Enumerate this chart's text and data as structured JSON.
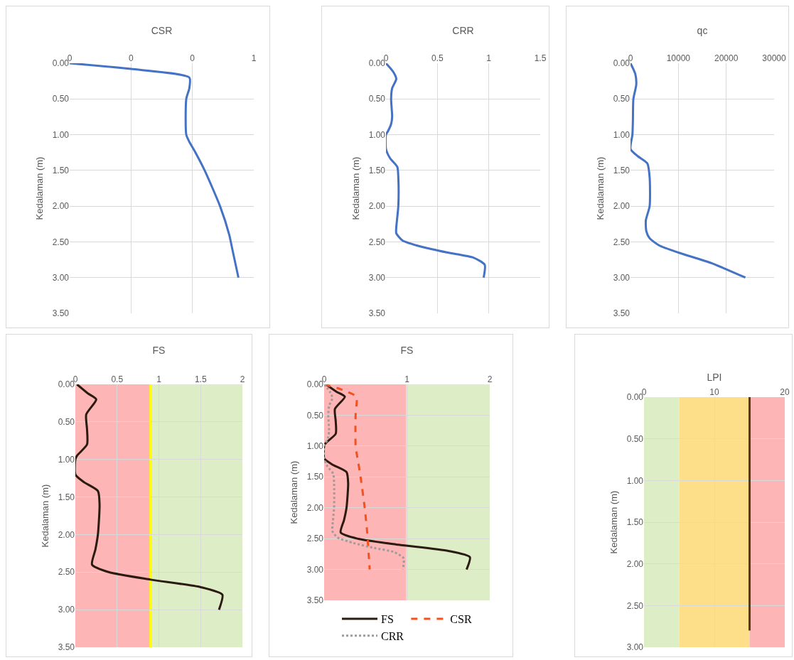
{
  "chart_data": [
    {
      "type": "line",
      "title": "CSR",
      "ylabel": "Kedalaman (m)",
      "xlim": [
        0,
        0.6
      ],
      "xticks": [
        {
          "value": 0,
          "label": "0"
        },
        {
          "value": 0.2,
          "label": "0"
        },
        {
          "value": 0.4,
          "label": "0"
        },
        {
          "value": 0.6,
          "label": "1"
        }
      ],
      "ylim": [
        3.5,
        0
      ],
      "yticks": [
        {
          "value": 0,
          "label": "0.00"
        },
        {
          "value": 0.5,
          "label": "0.50"
        },
        {
          "value": 1,
          "label": "1.00"
        },
        {
          "value": 1.5,
          "label": "1.50"
        },
        {
          "value": 2,
          "label": "2.00"
        },
        {
          "value": 2.5,
          "label": "2.50"
        },
        {
          "value": 3,
          "label": "3.00"
        },
        {
          "value": 3.5,
          "label": "3.50"
        }
      ],
      "grid": true,
      "legend": false,
      "series": [
        {
          "color": "#4472c4",
          "line_style": "solid",
          "x": [
            0,
            0.2,
            0.39,
            0.39,
            0.38,
            0.38,
            0.39,
            0.41,
            0.44,
            0.49,
            0.52,
            0.53,
            0.55
          ],
          "values": [
            0,
            0.08,
            0.2,
            0.35,
            0.5,
            1.0,
            1.1,
            1.25,
            1.5,
            2.0,
            2.4,
            2.6,
            3.0
          ]
        }
      ]
    },
    {
      "type": "line",
      "title": "CRR",
      "ylabel": "Kedalaman (m)",
      "xlim": [
        0,
        1.5
      ],
      "xticks": [
        0,
        0.5,
        1,
        1.5
      ],
      "ylim": [
        3.5,
        0
      ],
      "yticks": [
        {
          "value": 0,
          "label": "0.00"
        },
        {
          "value": 0.5,
          "label": "0.50"
        },
        {
          "value": 1,
          "label": "1.00"
        },
        {
          "value": 1.5,
          "label": "1.50"
        },
        {
          "value": 2,
          "label": "2.00"
        },
        {
          "value": 2.5,
          "label": "2.50"
        },
        {
          "value": 3,
          "label": "3.00"
        },
        {
          "value": 3.5,
          "label": "3.50"
        }
      ],
      "grid": true,
      "legend": false,
      "series": [
        {
          "color": "#4472c4",
          "line_style": "solid",
          "x": [
            0,
            0.07,
            0.1,
            0.06,
            0.05,
            0.06,
            0.05,
            0.02,
            0,
            0,
            0.04,
            0.11,
            0.12,
            0.12,
            0.1,
            0.1,
            0.16,
            0.35,
            0.6,
            0.85,
            0.96,
            0.95
          ],
          "values": [
            0,
            0.12,
            0.22,
            0.35,
            0.5,
            0.75,
            0.85,
            0.95,
            1.0,
            1.2,
            1.33,
            1.45,
            1.6,
            2.0,
            2.3,
            2.38,
            2.48,
            2.57,
            2.65,
            2.72,
            2.82,
            3.0
          ]
        }
      ]
    },
    {
      "type": "line",
      "title": "qc",
      "ylabel": "Kedalaman (m)",
      "xlim": [
        0,
        30000
      ],
      "xticks": [
        0,
        10000,
        20000,
        30000
      ],
      "ylim": [
        3.5,
        0
      ],
      "yticks": [
        {
          "value": 0,
          "label": "0.00"
        },
        {
          "value": 0.5,
          "label": "0.50"
        },
        {
          "value": 1,
          "label": "1.00"
        },
        {
          "value": 1.5,
          "label": "1.50"
        },
        {
          "value": 2,
          "label": "2.00"
        },
        {
          "value": 2.5,
          "label": "2.50"
        },
        {
          "value": 3,
          "label": "3.00"
        },
        {
          "value": 3.5,
          "label": "3.50"
        }
      ],
      "grid": true,
      "legend": false,
      "series": [
        {
          "color": "#4472c4",
          "line_style": "solid",
          "x": [
            0,
            1000,
            1200,
            600,
            500,
            400,
            0,
            1500,
            3500,
            4000,
            4000,
            3200,
            3300,
            4000,
            6000,
            10000,
            17000,
            24000
          ],
          "values": [
            0,
            0.15,
            0.3,
            0.5,
            0.8,
            1.0,
            1.2,
            1.3,
            1.4,
            1.6,
            2.0,
            2.2,
            2.35,
            2.45,
            2.55,
            2.65,
            2.8,
            3.0
          ]
        }
      ]
    },
    {
      "type": "line",
      "title": "FS",
      "ylabel": "Kedalaman (m)",
      "xlim": [
        0,
        2
      ],
      "xticks": [
        0,
        0.5,
        1,
        1.5,
        2
      ],
      "ylim": [
        3.5,
        0
      ],
      "yticks": [
        {
          "value": 0,
          "label": "0.00"
        },
        {
          "value": 0.5,
          "label": "0.50"
        },
        {
          "value": 1,
          "label": "1.00"
        },
        {
          "value": 1.5,
          "label": "1.50"
        },
        {
          "value": 2,
          "label": "2.00"
        },
        {
          "value": 2.5,
          "label": "2.50"
        },
        {
          "value": 3,
          "label": "3.00"
        },
        {
          "value": 3.5,
          "label": "3.50"
        }
      ],
      "grid": true,
      "legend": false,
      "bands": [
        {
          "axis": "x",
          "from": 0,
          "to": 0.9,
          "color": "#fdadad"
        },
        {
          "axis": "x",
          "from": 0.9,
          "to": 2,
          "color": "#d9ebc0"
        }
      ],
      "ref_lines": [
        {
          "axis": "x",
          "value": 0.9,
          "color": "#ffff00",
          "line_style": "solid"
        }
      ],
      "series": [
        {
          "color": "#2a1a10",
          "line_style": "solid",
          "x": [
            0.02,
            0.15,
            0.25,
            0.13,
            0.14,
            0.14,
            0.02,
            0,
            0,
            0.1,
            0.27,
            0.29,
            0.27,
            0.24,
            0.2,
            0.4,
            0.9,
            1.5,
            1.76,
            1.72
          ],
          "values": [
            0,
            0.12,
            0.2,
            0.4,
            0.6,
            0.8,
            0.95,
            1.0,
            1.2,
            1.3,
            1.42,
            1.6,
            2.0,
            2.2,
            2.4,
            2.5,
            2.6,
            2.7,
            2.8,
            3.0
          ]
        }
      ]
    },
    {
      "type": "line",
      "title": "FS",
      "ylabel": "Kedalaman (m)",
      "xlim": [
        0,
        2
      ],
      "xticks": [
        0,
        1,
        2
      ],
      "ylim": [
        3.5,
        0
      ],
      "yticks": [
        {
          "value": 0,
          "label": "0.00"
        },
        {
          "value": 0.5,
          "label": "0.50"
        },
        {
          "value": 1,
          "label": "1.00"
        },
        {
          "value": 1.5,
          "label": "1.50"
        },
        {
          "value": 2,
          "label": "2.00"
        },
        {
          "value": 2.5,
          "label": "2.50"
        },
        {
          "value": 3,
          "label": "3.00"
        },
        {
          "value": 3.5,
          "label": "3.50"
        }
      ],
      "grid": true,
      "legend": "bottom",
      "bands": [
        {
          "axis": "x",
          "from": 0,
          "to": 1,
          "color": "#fdadad"
        },
        {
          "axis": "x",
          "from": 1,
          "to": 2,
          "color": "#d9ebc0"
        }
      ],
      "ref_lines": [
        {
          "axis": "x",
          "value": 1,
          "color": "#ffff00",
          "line_style": "solid"
        }
      ],
      "series": [
        {
          "name": "FS",
          "color": "#2a1a10",
          "line_style": "solid",
          "x": [
            0.02,
            0.15,
            0.25,
            0.13,
            0.14,
            0.14,
            0.02,
            0,
            0,
            0.1,
            0.27,
            0.29,
            0.27,
            0.24,
            0.2,
            0.4,
            0.9,
            1.5,
            1.76,
            1.72
          ],
          "values": [
            0,
            0.12,
            0.2,
            0.4,
            0.6,
            0.8,
            0.95,
            1.0,
            1.2,
            1.3,
            1.42,
            1.6,
            2.0,
            2.2,
            2.4,
            2.5,
            2.6,
            2.7,
            2.8,
            3.0
          ]
        },
        {
          "name": "CSR",
          "color": "#f4511e",
          "line_style": "dashed",
          "x": [
            0,
            0.2,
            0.39,
            0.39,
            0.38,
            0.38,
            0.39,
            0.41,
            0.44,
            0.49,
            0.52,
            0.53,
            0.55
          ],
          "values": [
            0,
            0.08,
            0.2,
            0.35,
            0.5,
            1.0,
            1.1,
            1.25,
            1.5,
            2.0,
            2.4,
            2.6,
            3.0
          ]
        },
        {
          "name": "CRR",
          "color": "#a09a9a",
          "line_style": "dotted",
          "x": [
            0,
            0.07,
            0.1,
            0.06,
            0.05,
            0.06,
            0.05,
            0.02,
            0,
            0,
            0.04,
            0.11,
            0.12,
            0.12,
            0.1,
            0.1,
            0.16,
            0.35,
            0.6,
            0.85,
            0.96,
            0.95
          ],
          "values": [
            0,
            0.12,
            0.22,
            0.35,
            0.5,
            0.75,
            0.85,
            0.95,
            1.0,
            1.2,
            1.33,
            1.45,
            1.6,
            2.0,
            2.3,
            2.38,
            2.48,
            2.57,
            2.65,
            2.72,
            2.82,
            3.0
          ]
        }
      ]
    },
    {
      "type": "line",
      "title": "LPI",
      "ylabel": "Kedalaman (m)",
      "xlim": [
        0,
        20
      ],
      "xticks": [
        0,
        10,
        20
      ],
      "ylim": [
        3,
        0
      ],
      "yticks": [
        {
          "value": 0,
          "label": "0.00"
        },
        {
          "value": 0.5,
          "label": "0.50"
        },
        {
          "value": 1,
          "label": "1.00"
        },
        {
          "value": 1.5,
          "label": "1.50"
        },
        {
          "value": 2,
          "label": "2.00"
        },
        {
          "value": 2.5,
          "label": "2.50"
        },
        {
          "value": 3,
          "label": "3.00"
        }
      ],
      "grid": true,
      "legend": false,
      "bands": [
        {
          "axis": "x",
          "from": 0,
          "to": 5,
          "color": "#d9ebc0"
        },
        {
          "axis": "x",
          "from": 5,
          "to": 15,
          "color": "#fddb7c"
        },
        {
          "axis": "x",
          "from": 15,
          "to": 20,
          "color": "#fdadad"
        }
      ],
      "series": [
        {
          "color": "#5a3a08",
          "line_style": "solid",
          "x": [
            15,
            15
          ],
          "values": [
            0,
            2.8
          ]
        }
      ]
    }
  ]
}
